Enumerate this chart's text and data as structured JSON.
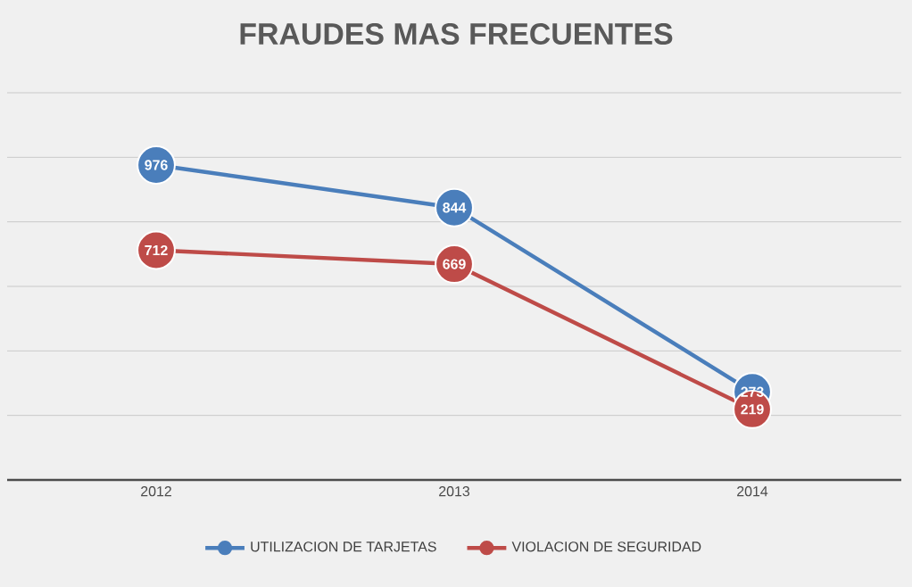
{
  "chart_data": {
    "type": "line",
    "title": "FRAUDES MAS FRECUENTES",
    "categories": [
      "2012",
      "2013",
      "2014"
    ],
    "series": [
      {
        "name": "UTILIZACION DE TARJETAS",
        "color": "#4a7ebb",
        "values": [
          976,
          844,
          273
        ]
      },
      {
        "name": "VIOLACION DE SEGURIDAD",
        "color": "#be4b48",
        "values": [
          712,
          669,
          219
        ]
      }
    ],
    "ylim": [
      0,
      1200
    ],
    "yticks": [
      {
        "value": 0,
        "label": null
      },
      {
        "value": 200,
        "label": null
      },
      {
        "value": 400,
        "label": null
      },
      {
        "value": 600,
        "label": null
      },
      {
        "value": 800,
        "label": null
      },
      {
        "value": 1000,
        "label": null
      },
      {
        "value": 1200,
        "label": null
      }
    ],
    "tick_labels": "x",
    "grid": "y",
    "legend": "bottom",
    "marker": "circle",
    "line_style": "solid",
    "data_labels": true
  }
}
